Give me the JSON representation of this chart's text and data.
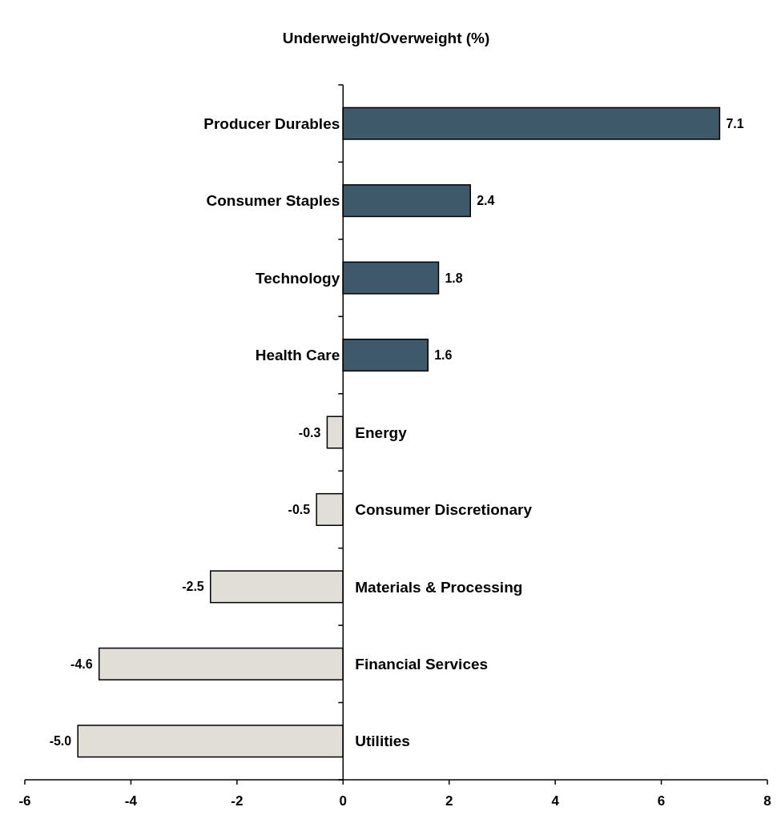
{
  "chart_data": {
    "type": "bar",
    "orientation": "horizontal",
    "title": "Underweight/Overweight (%)",
    "categories": [
      "Producer Durables",
      "Consumer Staples",
      "Technology",
      "Health Care",
      "Energy",
      "Consumer Discretionary",
      "Materials & Processing",
      "Financial Services",
      "Utilities"
    ],
    "values": [
      7.1,
      2.4,
      1.8,
      1.6,
      -0.3,
      -0.5,
      -2.5,
      -4.6,
      -5.0
    ],
    "value_labels": [
      "7.1",
      "2.4",
      "1.8",
      "1.6",
      "-0.3",
      "-0.5",
      "-2.5",
      "-4.6",
      "-5.0"
    ],
    "colors": [
      "#3e5a6a",
      "#3e5a6a",
      "#3e5a6a",
      "#3e5a6a",
      "#e1ded8",
      "#e1ded8",
      "#e1ded8",
      "#e1ded8",
      "#e1ded8"
    ],
    "xlim": [
      -6,
      8
    ],
    "xticks": [
      -6,
      -4,
      -2,
      0,
      2,
      4,
      6,
      8
    ]
  }
}
